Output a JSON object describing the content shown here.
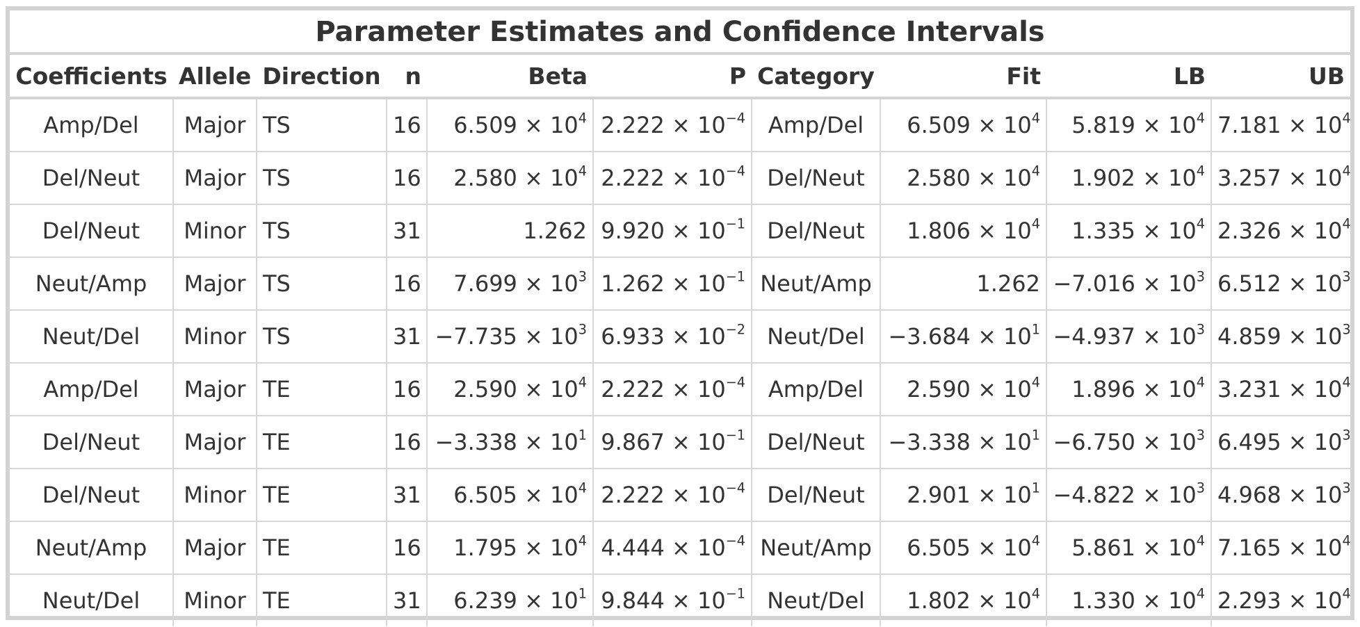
{
  "title": "Parameter Estimates and Confidence Intervals",
  "columns": [
    "Coefficients",
    "Allele",
    "Direction",
    "n",
    "Beta",
    "P",
    "Category",
    "Fit",
    "LB",
    "UB"
  ],
  "rows": [
    {
      "coef": "Amp/Del",
      "allele": "Major",
      "direction": "TS",
      "n": "16",
      "beta": {
        "m": "6.509",
        "e": "4"
      },
      "p": {
        "m": "2.222",
        "e": "−4"
      },
      "category": "Amp/Del",
      "fit": {
        "m": "6.509",
        "e": "4"
      },
      "lb": {
        "m": "5.819",
        "e": "4"
      },
      "ub": {
        "m": "7.181",
        "e": "4"
      }
    },
    {
      "coef": "Del/Neut",
      "allele": "Major",
      "direction": "TS",
      "n": "16",
      "beta": {
        "m": "2.580",
        "e": "4"
      },
      "p": {
        "m": "2.222",
        "e": "−4"
      },
      "category": "Del/Neut",
      "fit": {
        "m": "2.580",
        "e": "4"
      },
      "lb": {
        "m": "1.902",
        "e": "4"
      },
      "ub": {
        "m": "3.257",
        "e": "4"
      }
    },
    {
      "coef": "Del/Neut",
      "allele": "Minor",
      "direction": "TS",
      "n": "31",
      "beta": {
        "m": "1.262",
        "e": ""
      },
      "p": {
        "m": "9.920",
        "e": "−1"
      },
      "category": "Del/Neut",
      "fit": {
        "m": "1.806",
        "e": "4"
      },
      "lb": {
        "m": "1.335",
        "e": "4"
      },
      "ub": {
        "m": "2.326",
        "e": "4"
      }
    },
    {
      "coef": "Neut/Amp",
      "allele": "Major",
      "direction": "TS",
      "n": "16",
      "beta": {
        "m": "7.699",
        "e": "3"
      },
      "p": {
        "m": "1.262",
        "e": "−1"
      },
      "category": "Neut/Amp",
      "fit": {
        "m": "1.262",
        "e": ""
      },
      "lb": {
        "m": "−7.016",
        "e": "3"
      },
      "ub": {
        "m": "6.512",
        "e": "3"
      }
    },
    {
      "coef": "Neut/Del",
      "allele": "Minor",
      "direction": "TS",
      "n": "31",
      "beta": {
        "m": "−7.735",
        "e": "3"
      },
      "p": {
        "m": "6.933",
        "e": "−2"
      },
      "category": "Neut/Del",
      "fit": {
        "m": "−3.684",
        "e": "1"
      },
      "lb": {
        "m": "−4.937",
        "e": "3"
      },
      "ub": {
        "m": "4.859",
        "e": "3"
      }
    },
    {
      "coef": "Amp/Del",
      "allele": "Major",
      "direction": "TE",
      "n": "16",
      "beta": {
        "m": "2.590",
        "e": "4"
      },
      "p": {
        "m": "2.222",
        "e": "−4"
      },
      "category": "Amp/Del",
      "fit": {
        "m": "2.590",
        "e": "4"
      },
      "lb": {
        "m": "1.896",
        "e": "4"
      },
      "ub": {
        "m": "3.231",
        "e": "4"
      }
    },
    {
      "coef": "Del/Neut",
      "allele": "Major",
      "direction": "TE",
      "n": "16",
      "beta": {
        "m": "−3.338",
        "e": "1"
      },
      "p": {
        "m": "9.867",
        "e": "−1"
      },
      "category": "Del/Neut",
      "fit": {
        "m": "−3.338",
        "e": "1"
      },
      "lb": {
        "m": "−6.750",
        "e": "3"
      },
      "ub": {
        "m": "6.495",
        "e": "3"
      }
    },
    {
      "coef": "Del/Neut",
      "allele": "Minor",
      "direction": "TE",
      "n": "31",
      "beta": {
        "m": "6.505",
        "e": "4"
      },
      "p": {
        "m": "2.222",
        "e": "−4"
      },
      "category": "Del/Neut",
      "fit": {
        "m": "2.901",
        "e": "1"
      },
      "lb": {
        "m": "−4.822",
        "e": "3"
      },
      "ub": {
        "m": "4.968",
        "e": "3"
      }
    },
    {
      "coef": "Neut/Amp",
      "allele": "Major",
      "direction": "TE",
      "n": "16",
      "beta": {
        "m": "1.795",
        "e": "4"
      },
      "p": {
        "m": "4.444",
        "e": "−4"
      },
      "category": "Neut/Amp",
      "fit": {
        "m": "6.505",
        "e": "4"
      },
      "lb": {
        "m": "5.861",
        "e": "4"
      },
      "ub": {
        "m": "7.165",
        "e": "4"
      }
    },
    {
      "coef": "Neut/Del",
      "allele": "Minor",
      "direction": "TE",
      "n": "31",
      "beta": {
        "m": "6.239",
        "e": "1"
      },
      "p": {
        "m": "9.844",
        "e": "−1"
      },
      "category": "Neut/Del",
      "fit": {
        "m": "1.802",
        "e": "4"
      },
      "lb": {
        "m": "1.330",
        "e": "4"
      },
      "ub": {
        "m": "2.293",
        "e": "4"
      }
    }
  ]
}
